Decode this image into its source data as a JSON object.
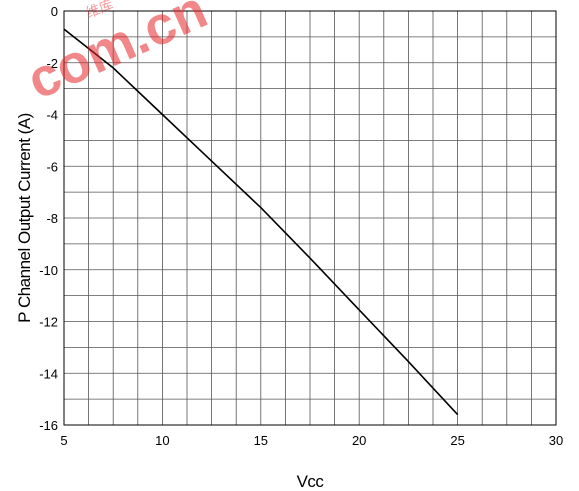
{
  "watermark": {
    "text": "com.cn",
    "small_text": "维库",
    "color": "#e8262a"
  },
  "chart_data": {
    "type": "line",
    "title": "",
    "xlabel": "Vcc",
    "ylabel": "P Channel Output Current (A)",
    "xlim": [
      5,
      30
    ],
    "ylim": [
      -16,
      0
    ],
    "x_ticks": [
      5,
      10,
      15,
      20,
      25,
      30
    ],
    "y_ticks": [
      0,
      -2,
      -4,
      -6,
      -8,
      -10,
      -12,
      -14,
      -16
    ],
    "grid": true,
    "x_minor_step": 1.25,
    "y_minor_step": 1,
    "line_color": "#000000",
    "series": [
      {
        "x": [
          5,
          7.5,
          10,
          12.5,
          15,
          17.5,
          20,
          22.5,
          25
        ],
        "y": [
          -0.7,
          -2.2,
          -4.0,
          -5.8,
          -7.6,
          -9.55,
          -11.55,
          -13.55,
          -15.6
        ]
      }
    ]
  }
}
